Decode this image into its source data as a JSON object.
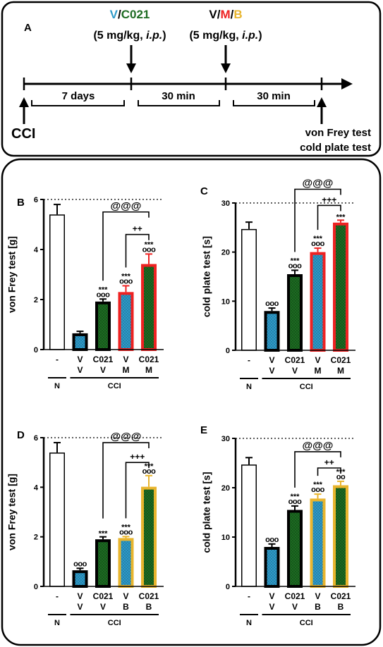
{
  "timeline": {
    "panel_letter": "A",
    "v_label": "V",
    "slash": "/",
    "c021_label": "C021",
    "dose1": "(5 mg/kg, ",
    "ip1": "i.p.",
    "close1": ")",
    "m_label": "M",
    "b_label": "B",
    "dose2": "(5 mg/kg, ",
    "ip2": "i.p.",
    "close2": ")",
    "interval1": "7 days",
    "interval2": "30 min",
    "interval3": "30 min",
    "start": "CCI",
    "test1": "von Frey test",
    "test2": "cold plate test"
  },
  "colors": {
    "vehicle": "#2e9ac8",
    "c021": "#1d6b22",
    "maraviroc": "#ee2222",
    "b_drug": "#e8b52e",
    "black": "#000000",
    "white": "#ffffff"
  },
  "chart_data": [
    {
      "panel": "B",
      "type": "bar",
      "ylabel": "von Frey test [g]",
      "ylim": [
        0,
        6
      ],
      "yticks": [
        "0",
        "2",
        "4",
        "6"
      ],
      "dotted_line": 6,
      "categories": [
        {
          "top": "-",
          "bottom": "",
          "fill": "white",
          "border": "black"
        },
        {
          "top": "V",
          "bottom": "V",
          "fill": "vehicle",
          "border": "black"
        },
        {
          "top": "C021",
          "bottom": "V",
          "fill": "c021",
          "border": "black"
        },
        {
          "top": "V",
          "bottom": "M",
          "fill": "vehicle",
          "border": "maraviroc"
        },
        {
          "top": "C021",
          "bottom": "M",
          "fill": "c021",
          "border": "maraviroc"
        }
      ],
      "values": [
        5.4,
        0.65,
        1.92,
        2.3,
        3.42
      ],
      "errors": [
        0.4,
        0.08,
        0.1,
        0.25,
        0.4
      ],
      "sig_stars": [
        "",
        "",
        "***",
        "***",
        "***"
      ],
      "sig_circles": [
        "",
        "",
        "ooo",
        "ooo",
        "ooo"
      ],
      "groups": [
        "N",
        "CCI"
      ],
      "brackets": [
        {
          "from": 2,
          "to": 4,
          "label": "@@@",
          "level": 5.5
        },
        {
          "from": 3,
          "to": 4,
          "label": "++",
          "level": 4.6
        }
      ]
    },
    {
      "panel": "C",
      "type": "bar",
      "ylabel": "cold plate test [s]",
      "ylim": [
        0,
        30
      ],
      "yticks": [
        "0",
        "10",
        "20",
        "30"
      ],
      "dotted_line": 30,
      "categories": [
        {
          "top": "-",
          "bottom": "",
          "fill": "white",
          "border": "black"
        },
        {
          "top": "V",
          "bottom": "V",
          "fill": "vehicle",
          "border": "black"
        },
        {
          "top": "C021",
          "bottom": "V",
          "fill": "c021",
          "border": "black"
        },
        {
          "top": "V",
          "bottom": "M",
          "fill": "vehicle",
          "border": "maraviroc"
        },
        {
          "top": "C021",
          "bottom": "M",
          "fill": "c021",
          "border": "maraviroc"
        }
      ],
      "values": [
        24.7,
        8.0,
        15.5,
        20.0,
        26.0
      ],
      "errors": [
        1.4,
        0.6,
        0.8,
        0.8,
        0.5
      ],
      "sig_stars": [
        "",
        "",
        "***",
        "***",
        "***"
      ],
      "sig_circles": [
        "",
        "ooo",
        "ooo",
        "ooo",
        ""
      ],
      "groups": [
        "N",
        "CCI"
      ],
      "brackets": [
        {
          "from": 2,
          "to": 4,
          "label": "@@@",
          "level": 32.8
        },
        {
          "from": 3,
          "to": 4,
          "label": "+++",
          "level": 29.5
        }
      ]
    },
    {
      "panel": "D",
      "type": "bar",
      "ylabel": "von Frey test [g]",
      "ylim": [
        0,
        6
      ],
      "yticks": [
        "0",
        "2",
        "4",
        "6"
      ],
      "dotted_line": 6,
      "categories": [
        {
          "top": "-",
          "bottom": "",
          "fill": "white",
          "border": "black"
        },
        {
          "top": "V",
          "bottom": "V",
          "fill": "vehicle",
          "border": "black"
        },
        {
          "top": "C021",
          "bottom": "V",
          "fill": "c021",
          "border": "black"
        },
        {
          "top": "V",
          "bottom": "B",
          "fill": "vehicle",
          "border": "b_drug"
        },
        {
          "top": "C021",
          "bottom": "B",
          "fill": "c021",
          "border": "b_drug"
        }
      ],
      "values": [
        5.4,
        0.65,
        1.9,
        1.95,
        4.02
      ],
      "errors": [
        0.4,
        0.08,
        0.1,
        0.06,
        0.45
      ],
      "sig_stars": [
        "",
        "",
        "***",
        "***",
        "***"
      ],
      "sig_circles": [
        "",
        "ooo",
        "",
        "ooo",
        "ooo"
      ],
      "groups": [
        "N",
        "CCI"
      ],
      "brackets": [
        {
          "from": 2,
          "to": 4,
          "label": "@@@",
          "level": 5.8
        },
        {
          "from": 3,
          "to": 4,
          "label": "+++",
          "level": 5.0
        }
      ]
    },
    {
      "panel": "E",
      "type": "bar",
      "ylabel": "cold plate test [s]",
      "ylim": [
        0,
        30
      ],
      "yticks": [
        "0",
        "10",
        "20",
        "30"
      ],
      "dotted_line": 30,
      "categories": [
        {
          "top": "-",
          "bottom": "",
          "fill": "white",
          "border": "black"
        },
        {
          "top": "V",
          "bottom": "V",
          "fill": "vehicle",
          "border": "black"
        },
        {
          "top": "C021",
          "bottom": "V",
          "fill": "c021",
          "border": "black"
        },
        {
          "top": "V",
          "bottom": "B",
          "fill": "vehicle",
          "border": "b_drug"
        },
        {
          "top": "C021",
          "bottom": "B",
          "fill": "c021",
          "border": "b_drug"
        }
      ],
      "values": [
        24.7,
        8.0,
        15.5,
        17.8,
        20.5
      ],
      "errors": [
        1.4,
        0.6,
        0.8,
        0.9,
        0.8
      ],
      "sig_stars": [
        "",
        "",
        "***",
        "***",
        "***"
      ],
      "sig_circles": [
        "",
        "ooo",
        "ooo",
        "ooo",
        "oo"
      ],
      "groups": [
        "N",
        "CCI"
      ],
      "brackets": [
        {
          "from": 2,
          "to": 4,
          "label": "@@@",
          "level": 27.3
        },
        {
          "from": 3,
          "to": 4,
          "label": "++",
          "level": 24.0
        }
      ]
    }
  ]
}
